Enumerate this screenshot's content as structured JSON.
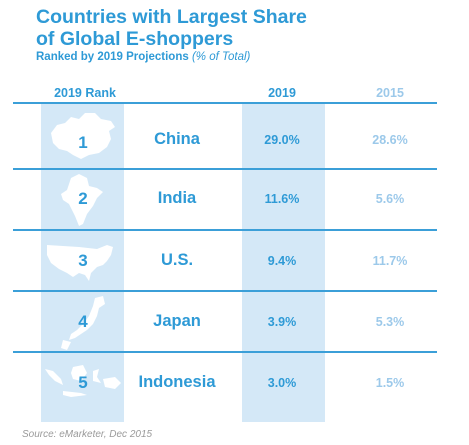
{
  "title_line1": "Countries with Largest Share",
  "title_line2": "of Global E-shoppers",
  "subtitle_text": "Ranked by 2019 Projections",
  "subtitle_unit": "(% of Total)",
  "source": "Source: eMarketer, Dec 2015",
  "colors": {
    "accent": "#2e9ad6",
    "light": "#9cc9ea",
    "band": "#d4e8f7",
    "rule": "#3b9fd8"
  },
  "chart_data": {
    "type": "table",
    "columns": [
      "2019 Rank",
      "2019",
      "2015"
    ],
    "rows": [
      {
        "rank": "1",
        "country": "China",
        "v2019": "29.0%",
        "v2015": "28.6%",
        "icon": "china-map-icon"
      },
      {
        "rank": "2",
        "country": "India",
        "v2019": "11.6%",
        "v2015": "5.6%",
        "icon": "india-map-icon"
      },
      {
        "rank": "3",
        "country": "U.S.",
        "v2019": "9.4%",
        "v2015": "11.7%",
        "icon": "usa-map-icon"
      },
      {
        "rank": "4",
        "country": "Japan",
        "v2019": "3.9%",
        "v2015": "5.3%",
        "icon": "japan-map-icon"
      },
      {
        "rank": "5",
        "country": "Indonesia",
        "v2019": "3.0%",
        "v2015": "1.5%",
        "icon": "indonesia-map-icon"
      }
    ]
  }
}
